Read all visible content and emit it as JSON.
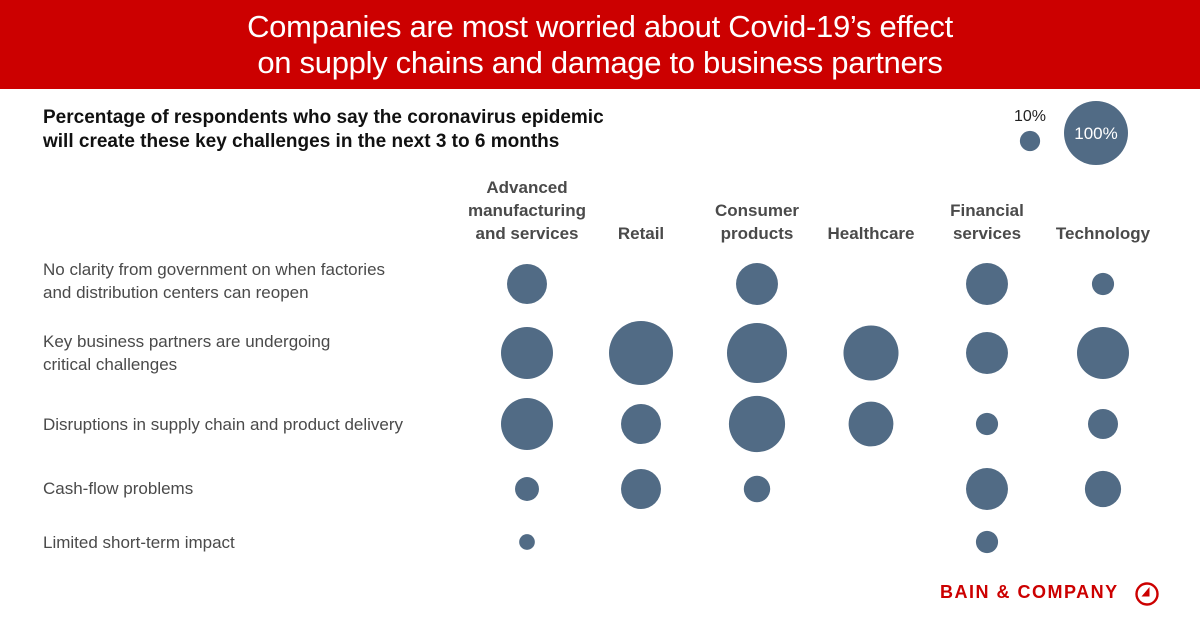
{
  "header": {
    "title_line1": "Companies are most worried about Covid-19’s effect",
    "title_line2": "on supply chains and damage to business partners",
    "banner_color": "#cc0000"
  },
  "footer": {
    "brand": "BAIN & COMPANY",
    "brand_icon": "bain-logo-icon"
  },
  "chart_data": {
    "type": "bubble-matrix",
    "title": "Percentage of respondents who say the coronavirus epidemic will create these key challenges in the next 3 to 6 months",
    "title_line1": "Percentage of respondents who say the coronavirus epidemic",
    "title_line2": "will create these key challenges in the next 3 to 6 months",
    "size_encoding": "area proportional to percentage",
    "bubble_color": "#516b85",
    "legend": {
      "placement": "top-right",
      "items": [
        {
          "label": "10%",
          "value": 10
        },
        {
          "label": "100%",
          "value": 100
        }
      ]
    },
    "columns": [
      {
        "label_lines": [
          "Advanced",
          "manufacturing",
          "and services"
        ],
        "label": "Advanced manufacturing and services"
      },
      {
        "label_lines": [
          "Retail"
        ],
        "label": "Retail"
      },
      {
        "label_lines": [
          "Consumer",
          "products"
        ],
        "label": "Consumer products"
      },
      {
        "label_lines": [
          "Healthcare"
        ],
        "label": "Healthcare"
      },
      {
        "label_lines": [
          "Financial",
          "services"
        ],
        "label": "Financial services"
      },
      {
        "label_lines": [
          "Technology"
        ],
        "label": "Technology"
      }
    ],
    "rows": [
      {
        "label_lines": [
          "No clarity from government on when factories",
          "and distribution centers can reopen"
        ],
        "values": [
          39,
          null,
          43,
          null,
          43,
          12
        ]
      },
      {
        "label_lines": [
          "Key business partners are undergoing",
          "critical challenges"
        ],
        "values": [
          66,
          100,
          88,
          74,
          43,
          66
        ]
      },
      {
        "label_lines": [
          "Disruptions in supply chain and product delivery"
        ],
        "values": [
          66,
          39,
          77,
          49,
          12,
          22
        ]
      },
      {
        "label_lines": [
          "Cash-flow problems"
        ],
        "values": [
          14,
          39,
          17,
          null,
          43,
          32
        ]
      },
      {
        "label_lines": [
          "Limited short-term impact"
        ],
        "values": [
          6,
          null,
          null,
          null,
          12,
          null
        ]
      }
    ]
  }
}
